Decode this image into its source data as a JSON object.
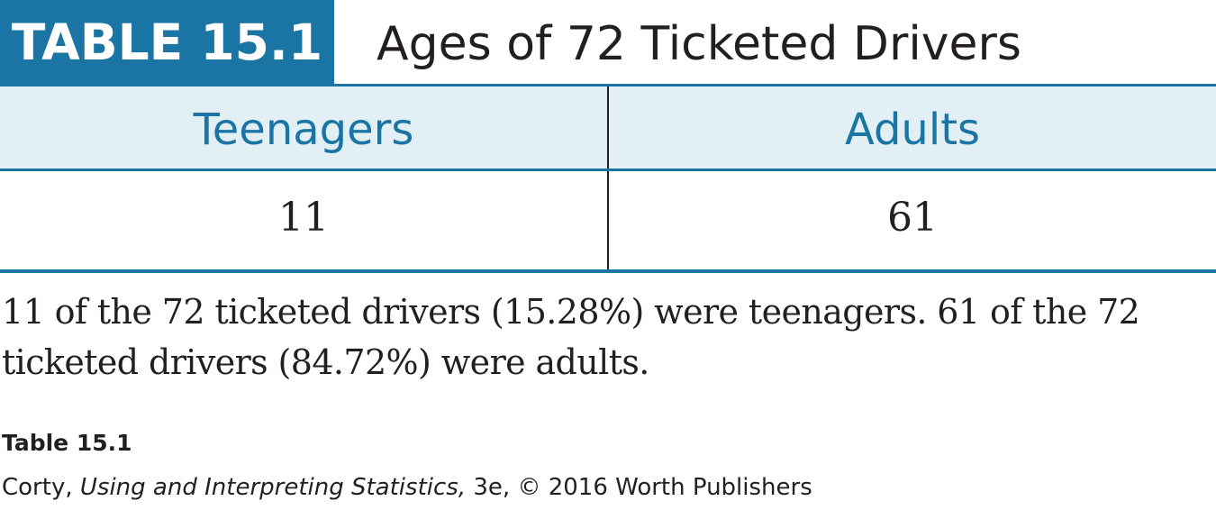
{
  "table": {
    "label": "TABLE 15.1",
    "title": "Ages of 72 Ticketed Drivers",
    "columns": [
      "Teenagers",
      "Adults"
    ],
    "values": [
      "11",
      "61"
    ]
  },
  "note": "11 of the 72 ticketed drivers (15.28%) were teenagers. 61 of the 72 ticketed drivers (84.72%) were adults.",
  "caption": {
    "title": "Table 15.1",
    "author": "Corty, ",
    "book_title": "Using and Interpreting Statistics,",
    "edition_and_publisher": " 3e, © 2016 Worth Publishers"
  },
  "colors": {
    "accent": "#1a74a4",
    "header_fill": "#e2f0f6",
    "text": "#231f20"
  }
}
